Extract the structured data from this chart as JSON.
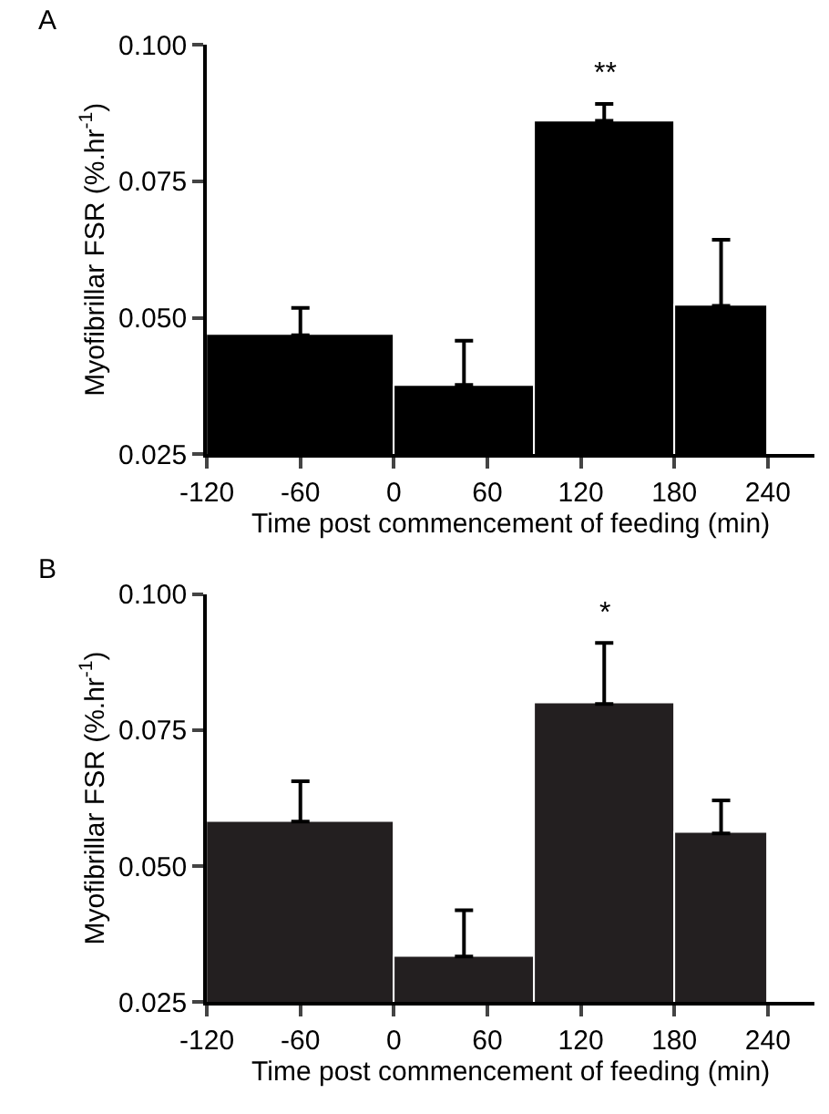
{
  "chart_data": [
    {
      "type": "histogram",
      "title": "A",
      "xlabel": "Time post commencement of feeding (min)",
      "ylabel": "Myofibrillar FSR (%.hr$^{-1}$)",
      "bins": [
        -120,
        0,
        90,
        180,
        240
      ],
      "values": [
        0.0468,
        0.0377,
        0.0861,
        0.0522
      ],
      "color": "#000000",
      "errors": [
        [
          0.0468,
          0.0518
        ],
        [
          0.0377,
          0.0458
        ],
        [
          0.0861,
          0.0892
        ],
        [
          0.0522,
          0.0643
        ]
      ],
      "xlim": [
        -120,
        270
      ],
      "xticks": [
        -120,
        -60,
        0,
        60,
        120,
        180,
        240
      ],
      "ylim": [
        0.025,
        0.1
      ],
      "yticks": [
        {
          "value": 0.025,
          "label": "0.025"
        },
        {
          "value": 0.05,
          "label": "0.050"
        },
        {
          "value": 0.075,
          "label": "0.075"
        },
        {
          "value": 0.1,
          "label": "0.100"
        }
      ],
      "annotations": [
        "**"
      ]
    },
    {
      "type": "histogram",
      "title": "B",
      "xlabel": "Time post commencement of feeding (min)",
      "ylabel": "Myofibrillar FSR (%.hr$^{-1}$)",
      "bins": [
        -120,
        0,
        90,
        180,
        240
      ],
      "values": [
        0.0582,
        0.0334,
        0.0798,
        0.056
      ],
      "color": "#231f20",
      "errors": [
        [
          0.0582,
          0.0656
        ],
        [
          0.0334,
          0.0419
        ],
        [
          0.0798,
          0.091
        ],
        [
          0.056,
          0.0621
        ]
      ],
      "xlim": [
        -120,
        270
      ],
      "xticks": [
        -120,
        -60,
        0,
        60,
        120,
        180,
        240
      ],
      "ylim": [
        0.025,
        0.1
      ],
      "yticks": [
        {
          "value": 0.025,
          "label": "0.025"
        },
        {
          "value": 0.05,
          "label": "0.050"
        },
        {
          "value": 0.075,
          "label": "0.075"
        },
        {
          "value": 0.1,
          "label": "0.100"
        }
      ],
      "annotations": [
        "*"
      ]
    }
  ]
}
